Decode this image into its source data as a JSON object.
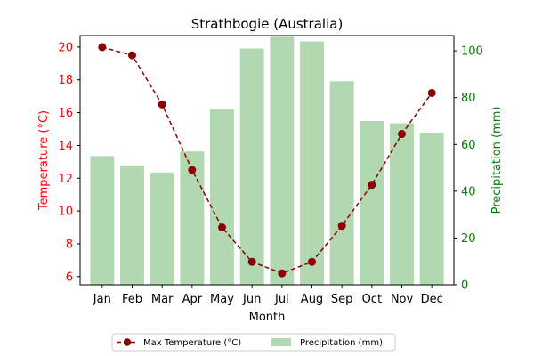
{
  "chart_data": {
    "type": "bar+line",
    "title": "Strathbogie (Australia)",
    "xlabel": "Month",
    "categories": [
      "Jan",
      "Feb",
      "Mar",
      "Apr",
      "May",
      "Jun",
      "Jul",
      "Aug",
      "Sep",
      "Oct",
      "Nov",
      "Dec"
    ],
    "series": [
      {
        "name": "Max Temperature (°C)",
        "type": "line",
        "axis": "left",
        "color": "#8b0000",
        "values": [
          20.0,
          19.5,
          16.5,
          12.5,
          9.0,
          6.9,
          6.2,
          6.9,
          9.1,
          11.6,
          14.7,
          17.2
        ]
      },
      {
        "name": "Precipitation (mm)",
        "type": "bar",
        "axis": "right",
        "color": "#b2d8b2",
        "values": [
          55,
          51,
          48,
          57,
          75,
          101,
          106,
          104,
          87,
          70,
          69,
          65
        ]
      }
    ],
    "y_left": {
      "label": "Temperature (°C)",
      "color": "#ff0000",
      "ticks": [
        "6",
        "8",
        "10",
        "12",
        "14",
        "16",
        "18",
        "20"
      ],
      "lim": [
        5.5,
        20.7
      ]
    },
    "y_right": {
      "label": "Precipitation (mm)",
      "color": "#008000",
      "ticks": [
        "0",
        "20",
        "40",
        "60",
        "80",
        "100"
      ],
      "lim": [
        0,
        106.5
      ]
    },
    "grid": false,
    "legend_position": "bottom-center"
  }
}
